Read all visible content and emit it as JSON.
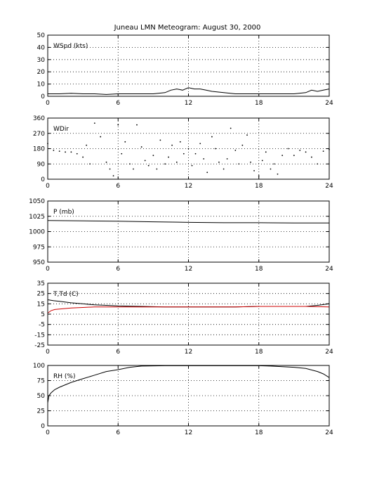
{
  "figure": {
    "title": "Juneau LMN Meteogram:     August 30, 2000"
  },
  "chart_data": [
    {
      "type": "line",
      "label": "WSpd (kts)",
      "ylim": [
        0,
        50
      ],
      "yticks": [
        0,
        10,
        20,
        30,
        40,
        50
      ],
      "xlim": [
        0,
        24
      ],
      "xticks": [
        0,
        6,
        12,
        18,
        24
      ],
      "grid": true,
      "series": [
        {
          "color": "#000000",
          "x": [
            0,
            1,
            2,
            3,
            4,
            5,
            6,
            7,
            8,
            9,
            10,
            10.5,
            11,
            11.5,
            12,
            12.5,
            13,
            13.5,
            14,
            15,
            16,
            17,
            18,
            19,
            20,
            21,
            22,
            22.5,
            23,
            23.5,
            24
          ],
          "y": [
            2,
            2,
            2.5,
            2,
            2,
            1.5,
            2,
            2,
            2,
            2,
            3,
            5,
            6,
            5,
            7,
            6,
            6,
            5,
            4,
            3,
            2,
            2,
            2,
            2,
            2,
            2,
            3,
            5,
            4,
            5,
            6
          ]
        }
      ]
    },
    {
      "type": "scatter",
      "label": "WDir",
      "ylim": [
        0,
        360
      ],
      "yticks": [
        0,
        90,
        180,
        270,
        360
      ],
      "xlim": [
        0,
        24
      ],
      "xticks": [
        0,
        6,
        12,
        18,
        24
      ],
      "grid": true,
      "series": [
        {
          "color": "#000000",
          "x": [
            0,
            0.5,
            1,
            1.5,
            2,
            2.5,
            3,
            3.3,
            3.6,
            4,
            4.5,
            5,
            5.3,
            5.6,
            6,
            6.3,
            6.6,
            7,
            7.3,
            7.6,
            8,
            8.3,
            8.6,
            9,
            9.3,
            9.6,
            10,
            10.3,
            10.6,
            11,
            11.3,
            11.6,
            12,
            12.3,
            12.6,
            13,
            13.3,
            13.6,
            14,
            14.3,
            14.6,
            15,
            15.3,
            15.6,
            16,
            16.3,
            16.6,
            17,
            17.3,
            17.6,
            18,
            18.3,
            18.6,
            19,
            19.3,
            19.6,
            20,
            20.5,
            21,
            21.5,
            22,
            22.5,
            23,
            23.5,
            24
          ],
          "y": [
            210,
            170,
            165,
            160,
            160,
            150,
            130,
            200,
            90,
            330,
            250,
            100,
            60,
            20,
            320,
            150,
            220,
            90,
            60,
            320,
            190,
            110,
            80,
            140,
            60,
            230,
            90,
            130,
            200,
            100,
            220,
            150,
            180,
            80,
            150,
            210,
            120,
            40,
            250,
            180,
            100,
            60,
            120,
            300,
            170,
            90,
            200,
            260,
            100,
            50,
            20,
            110,
            160,
            60,
            90,
            30,
            140,
            180,
            140,
            170,
            160,
            130,
            90,
            165,
            175
          ]
        }
      ]
    },
    {
      "type": "line",
      "label": "P (mb)",
      "ylim": [
        950,
        1050
      ],
      "yticks": [
        950,
        975,
        1000,
        1025,
        1050
      ],
      "xlim": [
        0,
        24
      ],
      "xticks": [
        0,
        6,
        12,
        18,
        24
      ],
      "grid": true,
      "series": [
        {
          "color": "#000000",
          "x": [
            0,
            3,
            6,
            9,
            12,
            15,
            18,
            21,
            24
          ],
          "y": [
            1018,
            1017.5,
            1017,
            1016,
            1015,
            1014.5,
            1014.5,
            1014,
            1014
          ]
        }
      ]
    },
    {
      "type": "line",
      "label": "T,Td (C)",
      "ylim": [
        -25,
        35
      ],
      "yticks": [
        -25,
        -15,
        -5,
        5,
        15,
        25,
        35
      ],
      "xlim": [
        0,
        24
      ],
      "xticks": [
        0,
        6,
        12,
        18,
        24
      ],
      "grid": true,
      "series": [
        {
          "color": "#000000",
          "x": [
            0,
            0.5,
            1,
            2,
            3,
            4,
            5,
            6,
            8,
            10,
            12,
            14,
            16,
            18,
            20,
            22,
            23,
            24
          ],
          "y": [
            19,
            18,
            17.5,
            16,
            15,
            14,
            13.5,
            13,
            12.5,
            12,
            12,
            12,
            12,
            12.5,
            12.5,
            12.5,
            13.5,
            15
          ]
        },
        {
          "color": "#cc0000",
          "x": [
            0,
            0.3,
            0.6,
            1,
            2,
            3,
            4,
            5,
            6,
            8,
            10,
            12,
            14,
            16,
            18,
            20,
            22,
            24
          ],
          "y": [
            6,
            8.5,
            9.5,
            10,
            11,
            11.5,
            12,
            12,
            12,
            12,
            12,
            12,
            12,
            12,
            12.5,
            12.5,
            12.5,
            12
          ]
        }
      ]
    },
    {
      "type": "line",
      "label": "RH (%)",
      "ylim": [
        0,
        100
      ],
      "yticks": [
        0,
        25,
        50,
        75,
        100
      ],
      "xlim": [
        0,
        24
      ],
      "xticks": [
        0,
        6,
        12,
        18,
        24
      ],
      "grid": true,
      "series": [
        {
          "color": "#000000",
          "x": [
            0,
            0.1,
            0.3,
            0.6,
            1,
            1.5,
            2,
            3,
            4,
            5,
            6,
            7,
            8,
            10,
            12,
            14,
            16,
            18,
            19,
            20,
            21,
            22,
            23,
            23.5,
            24
          ],
          "y": [
            38,
            50,
            55,
            60,
            64,
            68,
            72,
            78,
            84,
            90,
            93,
            97,
            99,
            99.5,
            99.5,
            99.5,
            99.5,
            99.5,
            99,
            98,
            97,
            95,
            90,
            86,
            80
          ]
        }
      ]
    }
  ]
}
